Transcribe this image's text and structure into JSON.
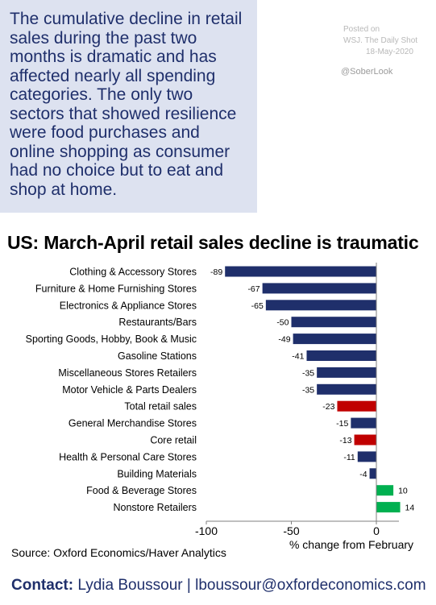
{
  "note": {
    "lines": [
      "The cumulative decline in retail",
      "sales during the past two",
      "months is dramatic and has",
      "affected nearly all spending",
      "categories. The only two",
      "sectors that showed resilience",
      "were food purchases and",
      "online shopping as consumer",
      "had no choice but to eat and",
      "shop at home."
    ]
  },
  "posted": {
    "label": "Posted on",
    "source": "WSJ. The Daily Shot",
    "date": "18-May-2020"
  },
  "handle": "@SoberLook",
  "colors": {
    "note_bg": "#dde2f0",
    "note_text": "#1f2f6b",
    "bar_default": "#1f2f6b",
    "bar_total": "#c00000",
    "bar_positive": "#00b050"
  },
  "chart_data": {
    "type": "bar",
    "orientation": "horizontal",
    "title": "US: March-April retail sales decline is traumatic",
    "xlabel": "% change from February",
    "xlim": [
      -100,
      0
    ],
    "xticks": [
      -100,
      -50,
      0
    ],
    "categories": [
      "Clothing & Accessory Stores",
      "Furniture & Home Furnishing Stores",
      "Electronics & Appliance Stores",
      "Restaurants/Bars",
      "Sporting Goods, Hobby, Book & Music",
      "Gasoline Stations",
      "Miscellaneous Stores Retailers",
      "Motor Vehicle & Parts Dealers",
      "Total retail sales",
      "General Merchandise Stores",
      "Core retail",
      "Health & Personal Care Stores",
      "Building Materials",
      "Food & Beverage Stores",
      "Nonstore Retailers"
    ],
    "values": [
      -89,
      -67,
      -65,
      -50,
      -49,
      -41,
      -35,
      -35,
      -23,
      -15,
      -13,
      -11,
      -4,
      10,
      14
    ],
    "highlight": [
      "default",
      "default",
      "default",
      "default",
      "default",
      "default",
      "default",
      "default",
      "total",
      "default",
      "total",
      "default",
      "default",
      "positive",
      "positive"
    ],
    "grid": false,
    "legend": "none"
  },
  "source": "Source: Oxford Economics/Haver Analytics",
  "contact": {
    "label": "Contact:",
    "text": "Lydia Boussour | lboussour@oxfordeconomics.com"
  }
}
